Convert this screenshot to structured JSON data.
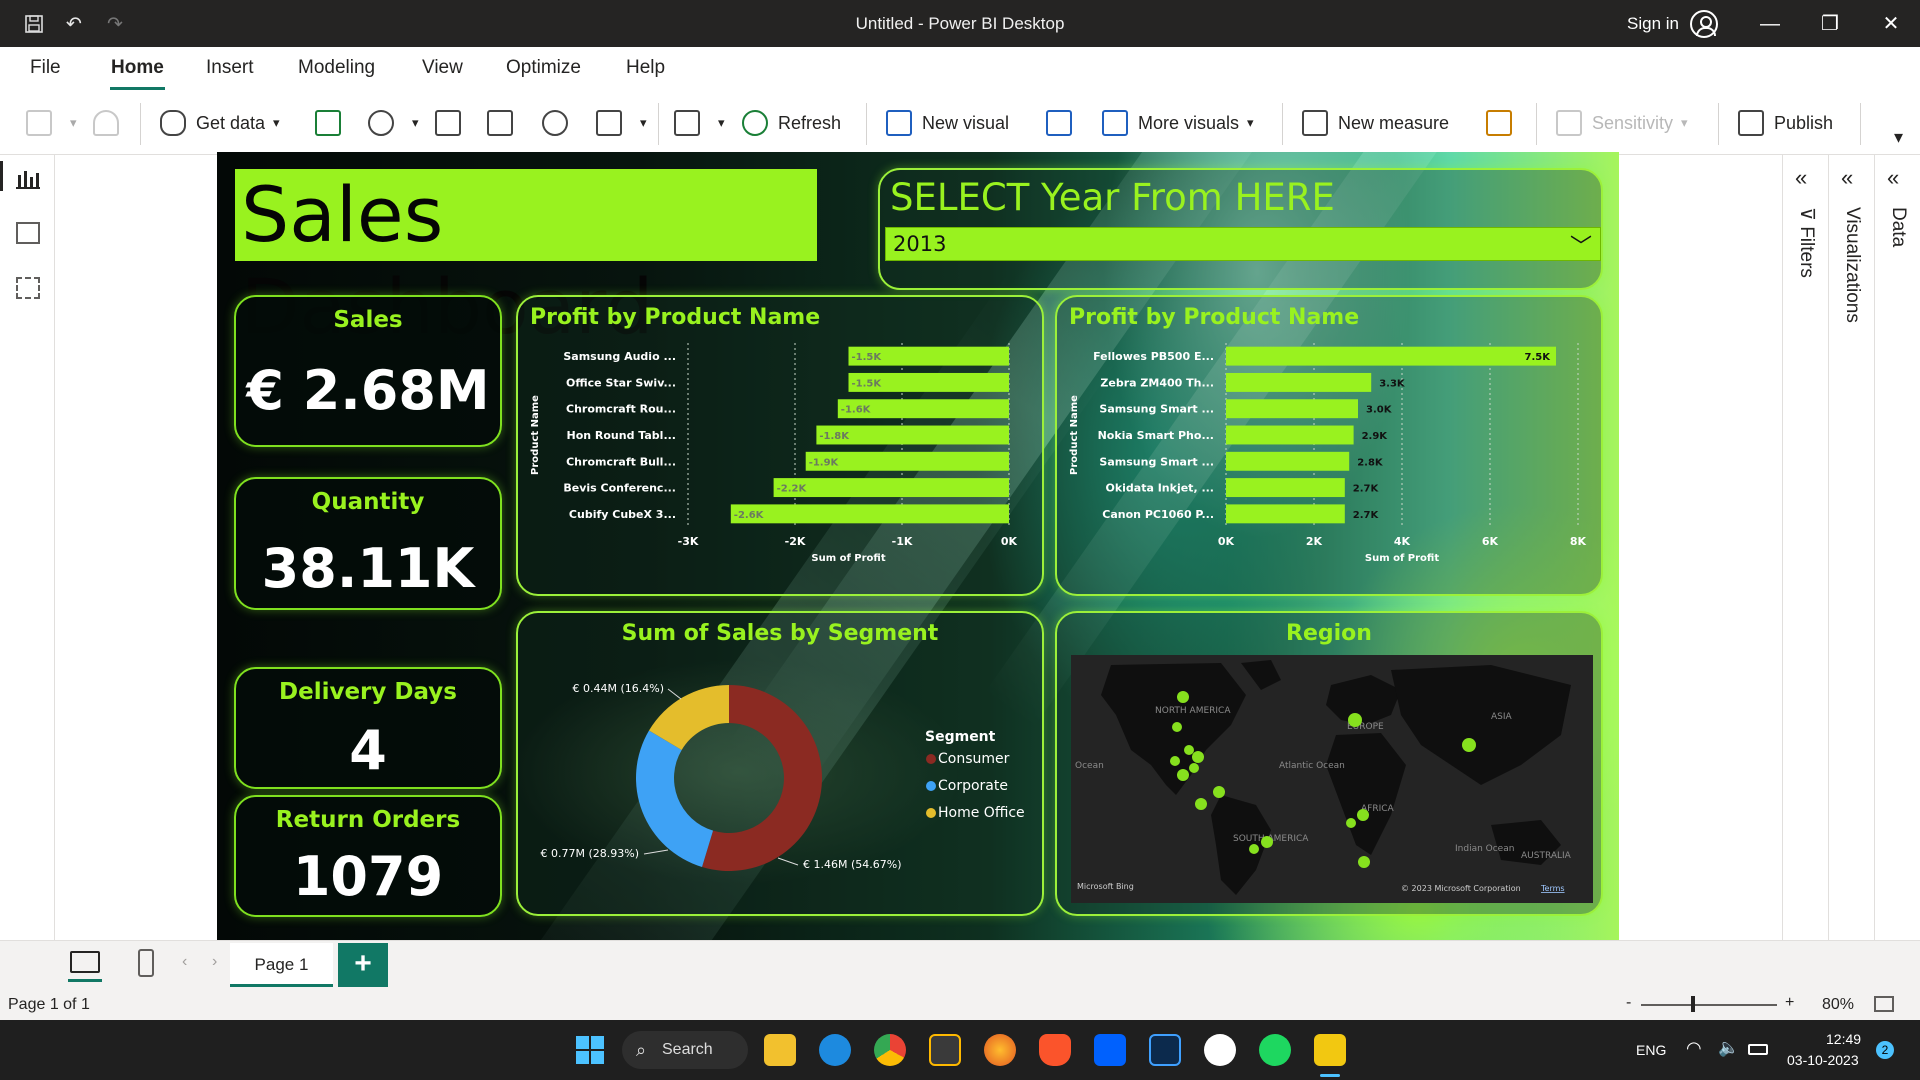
{
  "titlebar": {
    "title": "Untitled - Power BI Desktop",
    "signin": "Sign in",
    "minimize": "—",
    "restore": "❐",
    "close": "✕"
  },
  "menu": {
    "tabs": [
      "File",
      "Home",
      "Insert",
      "Modeling",
      "View",
      "Optimize",
      "Help"
    ],
    "active": "Home"
  },
  "ribbon": {
    "get_data": "Get data",
    "refresh": "Refresh",
    "new_visual": "New visual",
    "more_visuals": "More visuals",
    "new_measure": "New measure",
    "sensitivity": "Sensitivity",
    "publish": "Publish"
  },
  "panes": {
    "filters": "Filters",
    "visualizations": "Visualizations",
    "data": "Data"
  },
  "dashboard": {
    "title": "Sales Dashboard",
    "slicer": {
      "label": "SELECT Year From HERE",
      "value": "2013"
    },
    "kpis": {
      "sales": {
        "label": "Sales",
        "value": "€ 2.68M"
      },
      "quantity": {
        "label": "Quantity",
        "value": "38.11K"
      },
      "delivery_days": {
        "label": "Delivery Days",
        "value": "4"
      },
      "return_orders": {
        "label": "Return Orders",
        "value": "1079"
      }
    },
    "map": {
      "title": "Region",
      "labels": [
        "NORTH AMERICA",
        "EUROPE",
        "ASIA",
        "AFRICA",
        "SOUTH AMERICA",
        "AUSTRALIA",
        "Atlantic Ocean",
        "Indian Ocean",
        "Ocean"
      ],
      "brand": "Microsoft Bing",
      "copyright": "© 2023 Microsoft Corporation",
      "terms": "Terms"
    }
  },
  "chart_data": [
    {
      "type": "bar",
      "orientation": "horizontal",
      "title": "Profit by Product Name",
      "xlabel": "Sum of Profit",
      "ylabel": "Product Name",
      "categories": [
        "Samsung Audio ...",
        "Office Star Swiv...",
        "Chromcraft Rou...",
        "Hon Round Tabl...",
        "Chromcraft Bull...",
        "Bevis Conferenc...",
        "Cubify CubeX 3..."
      ],
      "values": [
        -1500,
        -1500,
        -1600,
        -1800,
        -1900,
        -2200,
        -2600
      ],
      "data_labels": [
        "-1.5K",
        "-1.5K",
        "-1.6K",
        "-1.8K",
        "-1.9K",
        "-2.2K",
        "-2.6K"
      ],
      "xlim": [
        -3000,
        0
      ],
      "xticks": [
        "-3K",
        "-2K",
        "-1K",
        "0K"
      ],
      "grid": true
    },
    {
      "type": "bar",
      "orientation": "horizontal",
      "title": "Profit by Product Name",
      "xlabel": "Sum of Profit",
      "ylabel": "Product Name",
      "categories": [
        "Fellowes PB500 E...",
        "Zebra ZM400 Th...",
        "Samsung Smart ...",
        "Nokia Smart Pho...",
        "Samsung Smart ...",
        "Okidata Inkjet, ...",
        "Canon PC1060 P..."
      ],
      "values": [
        7500,
        3300,
        3000,
        2900,
        2800,
        2700,
        2700
      ],
      "data_labels": [
        "7.5K",
        "3.3K",
        "3.0K",
        "2.9K",
        "2.8K",
        "2.7K",
        "2.7K"
      ],
      "xlim": [
        0,
        8000
      ],
      "xticks": [
        "0K",
        "2K",
        "4K",
        "6K",
        "8K"
      ],
      "grid": true
    },
    {
      "type": "pie",
      "title": "Sum of Sales by Segment",
      "legend_title": "Segment",
      "categories": [
        "Consumer",
        "Corporate",
        "Home Office"
      ],
      "values": [
        1.46,
        0.77,
        0.44
      ],
      "percents": [
        54.67,
        28.93,
        16.4
      ],
      "data_labels": [
        "€ 1.46M (54.67%)",
        "€ 0.77M (28.93%)",
        "€ 0.44M (16.4%)"
      ],
      "colors": [
        "#8b2a22",
        "#3ea2f5",
        "#e4bd2c"
      ],
      "legend": "right"
    }
  ],
  "pages": {
    "current": "Page 1",
    "add": "+"
  },
  "status": {
    "page": "Page 1 of 1",
    "zoom": "80%",
    "zoom_minus": "-",
    "zoom_plus": "+"
  },
  "taskbar": {
    "search": "Search",
    "lang": "ENG",
    "time": "12:49",
    "date": "03-10-2023",
    "badge": "2"
  }
}
